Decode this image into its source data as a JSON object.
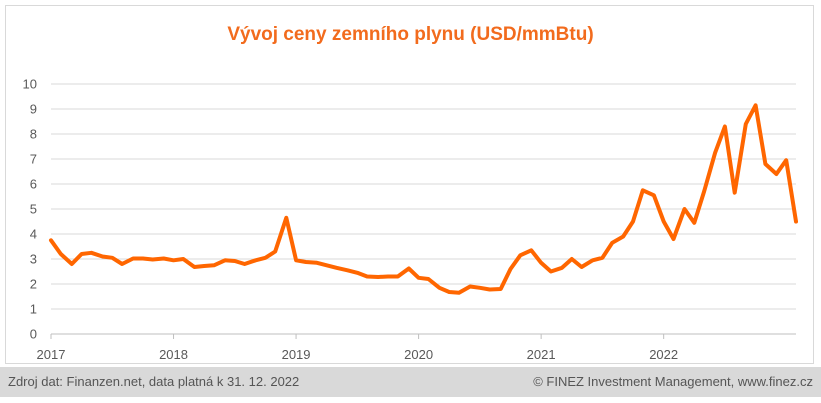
{
  "chart_data": {
    "type": "line",
    "title": "Vývoj ceny zemního plynu (USD/mmBtu)",
    "xlabel": "",
    "ylabel": "",
    "ylim": [
      0,
      10
    ],
    "yticks": [
      0,
      1,
      2,
      3,
      4,
      5,
      6,
      7,
      8,
      9,
      10
    ],
    "xticks": [
      "2017",
      "2018",
      "2019",
      "2020",
      "2021",
      "2022"
    ],
    "grid": "horizontal",
    "legend": "none",
    "series_color": "#ff6600",
    "series": [
      {
        "values": [
          [
            2017.0,
            3.75
          ],
          [
            2017.08,
            3.2
          ],
          [
            2017.17,
            2.8
          ],
          [
            2017.25,
            3.2
          ],
          [
            2017.33,
            3.25
          ],
          [
            2017.42,
            3.1
          ],
          [
            2017.5,
            3.05
          ],
          [
            2017.58,
            2.8
          ],
          [
            2017.67,
            3.02
          ],
          [
            2017.75,
            3.02
          ],
          [
            2017.83,
            2.98
          ],
          [
            2017.92,
            3.02
          ],
          [
            2018.0,
            2.95
          ],
          [
            2018.08,
            3.0
          ],
          [
            2018.17,
            2.68
          ],
          [
            2018.25,
            2.72
          ],
          [
            2018.33,
            2.75
          ],
          [
            2018.42,
            2.95
          ],
          [
            2018.5,
            2.92
          ],
          [
            2018.58,
            2.8
          ],
          [
            2018.67,
            2.95
          ],
          [
            2018.75,
            3.05
          ],
          [
            2018.83,
            3.3
          ],
          [
            2018.92,
            4.65
          ],
          [
            2019.0,
            2.95
          ],
          [
            2019.08,
            2.88
          ],
          [
            2019.17,
            2.85
          ],
          [
            2019.25,
            2.75
          ],
          [
            2019.33,
            2.65
          ],
          [
            2019.42,
            2.55
          ],
          [
            2019.5,
            2.45
          ],
          [
            2019.58,
            2.3
          ],
          [
            2019.67,
            2.28
          ],
          [
            2019.75,
            2.3
          ],
          [
            2019.83,
            2.3
          ],
          [
            2019.92,
            2.62
          ],
          [
            2020.0,
            2.25
          ],
          [
            2020.08,
            2.2
          ],
          [
            2020.17,
            1.85
          ],
          [
            2020.25,
            1.68
          ],
          [
            2020.33,
            1.65
          ],
          [
            2020.42,
            1.9
          ],
          [
            2020.5,
            1.85
          ],
          [
            2020.58,
            1.78
          ],
          [
            2020.67,
            1.8
          ],
          [
            2020.75,
            2.6
          ],
          [
            2020.83,
            3.15
          ],
          [
            2020.92,
            3.35
          ],
          [
            2021.0,
            2.85
          ],
          [
            2021.08,
            2.5
          ],
          [
            2021.17,
            2.65
          ],
          [
            2021.25,
            3.0
          ],
          [
            2021.33,
            2.68
          ],
          [
            2021.42,
            2.95
          ],
          [
            2021.5,
            3.05
          ],
          [
            2021.58,
            3.65
          ],
          [
            2021.67,
            3.9
          ],
          [
            2021.75,
            4.5
          ],
          [
            2021.83,
            5.75
          ],
          [
            2021.92,
            5.55
          ],
          [
            2022.0,
            4.5
          ],
          [
            2022.08,
            3.8
          ],
          [
            2022.17,
            5.0
          ],
          [
            2022.25,
            4.45
          ],
          [
            2022.33,
            5.7
          ],
          [
            2022.42,
            7.25
          ],
          [
            2022.5,
            8.3
          ],
          [
            2022.58,
            5.65
          ],
          [
            2022.67,
            8.4
          ],
          [
            2022.75,
            9.15
          ],
          [
            2022.83,
            6.8
          ],
          [
            2022.92,
            6.4
          ],
          [
            2023.0,
            6.95
          ],
          [
            2023.08,
            4.5
          ]
        ]
      }
    ]
  },
  "footer": {
    "source": "Zdroj dat: Finanzen.net, data platná k 31. 12. 2022",
    "copyright": "© FINEZ Investment Management, www.finez.cz"
  }
}
